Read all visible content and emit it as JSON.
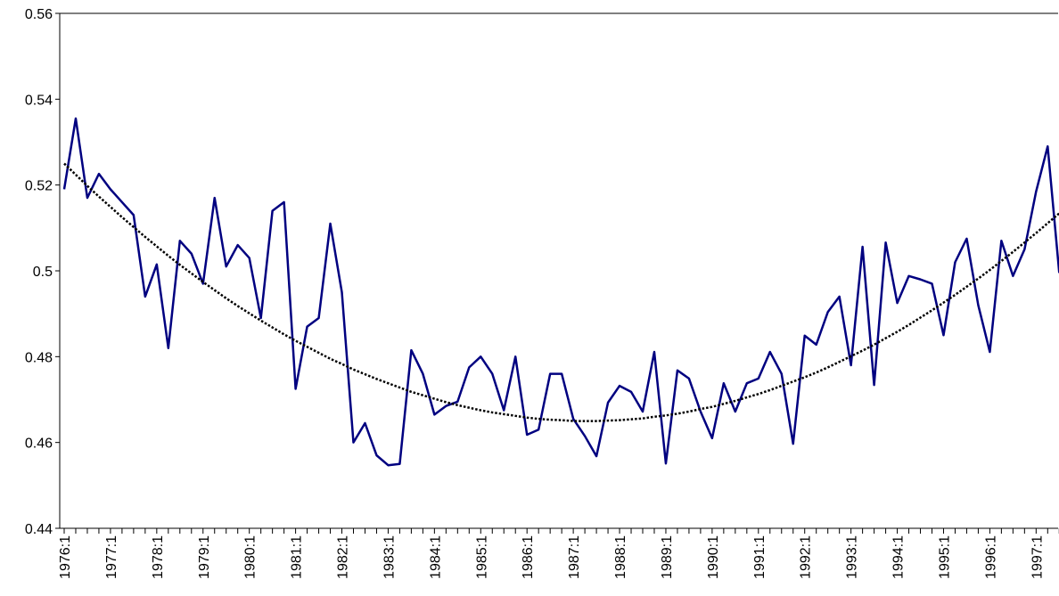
{
  "chart_data": {
    "type": "line",
    "categories": [
      "1976:1",
      null,
      null,
      null,
      "1977:1",
      null,
      null,
      null,
      "1978:1",
      null,
      null,
      null,
      "1979:1",
      null,
      null,
      null,
      "1980:1",
      null,
      null,
      null,
      "1981:1",
      null,
      null,
      null,
      "1982:1",
      null,
      null,
      null,
      "1983:1",
      null,
      null,
      null,
      "1984:1",
      null,
      null,
      null,
      "1985:1",
      null,
      null,
      null,
      "1986:1",
      null,
      null,
      null,
      "1987:1",
      null,
      null,
      null,
      "1988:1",
      null,
      null,
      null,
      "1989:1",
      null,
      null,
      null,
      "1990:1",
      null,
      null,
      null,
      "1991:1",
      null,
      null,
      null,
      "1992:1",
      null,
      null,
      null,
      "1993:1",
      null,
      null,
      null,
      "1994:1",
      null,
      null,
      null,
      "1995:1",
      null,
      null,
      null,
      "1996:1",
      null,
      null,
      null,
      "1997:1",
      null,
      null
    ],
    "series": [
      {
        "color": "#000080",
        "values": [
          0.519,
          0.5355,
          0.517,
          0.5226,
          0.519,
          0.516,
          0.513,
          0.494,
          0.5015,
          0.482,
          0.507,
          0.504,
          0.497,
          0.517,
          0.501,
          0.506,
          0.503,
          0.489,
          0.514,
          0.516,
          0.4725,
          0.487,
          0.489,
          0.511,
          0.495,
          0.46,
          0.4645,
          0.457,
          0.4547,
          0.455,
          0.4815,
          0.476,
          0.4665,
          0.4685,
          0.4695,
          0.4775,
          0.48,
          0.476,
          0.4675,
          0.48,
          0.4618,
          0.463,
          0.476,
          0.476,
          0.4655,
          0.4615,
          0.4568,
          0.4693,
          0.4732,
          0.4718,
          0.4672,
          0.4811,
          0.4551,
          0.4768,
          0.4749,
          0.4672,
          0.461,
          0.4738,
          0.4672,
          0.4738,
          0.4749,
          0.4811,
          0.476,
          0.4597,
          0.4849,
          0.4828,
          0.4904,
          0.494,
          0.478,
          0.5056,
          0.4734,
          0.5066,
          0.4925,
          0.4988,
          0.498,
          0.497,
          0.485,
          0.502,
          0.5075,
          0.492,
          0.4811,
          0.507,
          0.4988,
          0.505,
          0.5185,
          0.529,
          0.4995
        ]
      },
      {
        "color": "#000000",
        "dotted": true,
        "values": [
          0.525,
          0.5224,
          0.5198,
          0.5173,
          0.5149,
          0.5125,
          0.5102,
          0.5079,
          0.5057,
          0.5035,
          0.5014,
          0.4994,
          0.4974,
          0.4955,
          0.4936,
          0.4918,
          0.4901,
          0.4884,
          0.4868,
          0.4852,
          0.4837,
          0.4823,
          0.4809,
          0.4795,
          0.4783,
          0.477,
          0.4759,
          0.4748,
          0.4738,
          0.4728,
          0.4718,
          0.471,
          0.4702,
          0.4694,
          0.4687,
          0.4681,
          0.4675,
          0.467,
          0.4666,
          0.4662,
          0.4658,
          0.4655,
          0.4653,
          0.4652,
          0.465,
          0.465,
          0.465,
          0.4651,
          0.4652,
          0.4654,
          0.4656,
          0.466,
          0.4663,
          0.4667,
          0.4672,
          0.4678,
          0.4683,
          0.469,
          0.4697,
          0.4705,
          0.4713,
          0.4722,
          0.4732,
          0.4742,
          0.4752,
          0.4763,
          0.4775,
          0.4788,
          0.4801,
          0.4814,
          0.4828,
          0.4843,
          0.4858,
          0.4874,
          0.4891,
          0.4908,
          0.4926,
          0.4944,
          0.4963,
          0.4982,
          0.5002,
          0.5023,
          0.5044,
          0.5066,
          0.5088,
          0.5111,
          0.5134
        ]
      }
    ],
    "ylim": [
      0.44,
      0.56
    ],
    "yticks": [
      0.44,
      0.46,
      0.48,
      0.5,
      0.52,
      0.54,
      0.56
    ],
    "grid": false
  }
}
